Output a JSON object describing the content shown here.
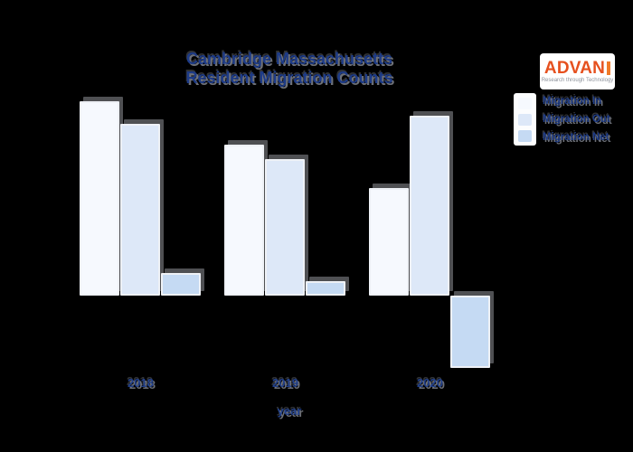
{
  "page": {
    "background": "#000000"
  },
  "title": {
    "line1": "Cambridge Massachusetts",
    "line2": "Resident Migration Counts",
    "color": "#1d3b87"
  },
  "logo": {
    "text": "ADVAN",
    "tagline": "Research through Technology",
    "text_color": "#e6501e",
    "background": "#ffffff"
  },
  "chart_data": {
    "type": "bar",
    "title": "Cambridge Massachusetts Resident Migration Counts",
    "categories": [
      "2018",
      "2019",
      "2020"
    ],
    "series": [
      {
        "name": "Migration In",
        "color": "#f6f9fe",
        "values": [
          21500,
          16700,
          11900
        ]
      },
      {
        "name": "Migration Out",
        "color": "#dde8f8",
        "values": [
          19000,
          15100,
          19900
        ]
      },
      {
        "name": "Migration Net",
        "color": "#c5daf3",
        "values": [
          2500,
          1600,
          -8000
        ]
      }
    ],
    "xlabel": "year",
    "ylabel": "",
    "ylim": [
      -10000,
      23000
    ],
    "y_axis_visible": false,
    "grid": false,
    "legend_position": "top-right",
    "background": "#000000"
  }
}
